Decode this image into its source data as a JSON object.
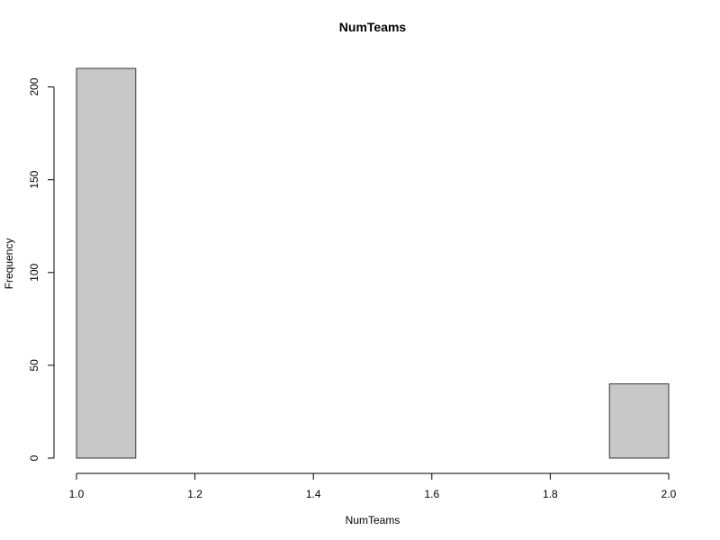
{
  "chart_data": {
    "type": "bar",
    "title": "NumTeams",
    "xlabel": "NumTeams",
    "ylabel": "Frequency",
    "bins": [
      {
        "x0": 1.0,
        "x1": 1.1,
        "count": 210
      },
      {
        "x0": 1.1,
        "x1": 1.2,
        "count": 0
      },
      {
        "x0": 1.2,
        "x1": 1.3,
        "count": 0
      },
      {
        "x0": 1.3,
        "x1": 1.4,
        "count": 0
      },
      {
        "x0": 1.4,
        "x1": 1.5,
        "count": 0
      },
      {
        "x0": 1.5,
        "x1": 1.6,
        "count": 0
      },
      {
        "x0": 1.6,
        "x1": 1.7,
        "count": 0
      },
      {
        "x0": 1.7,
        "x1": 1.8,
        "count": 0
      },
      {
        "x0": 1.8,
        "x1": 1.9,
        "count": 0
      },
      {
        "x0": 1.9,
        "x1": 2.0,
        "count": 40
      }
    ],
    "xlim": [
      1.0,
      2.0
    ],
    "ylim": [
      0,
      210
    ],
    "x_ticks": [
      "1.0",
      "1.2",
      "1.4",
      "1.6",
      "1.8",
      "2.0"
    ],
    "y_ticks": [
      "0",
      "50",
      "100",
      "150",
      "200"
    ],
    "bar_color": "#c8c8c8",
    "grid": false
  }
}
